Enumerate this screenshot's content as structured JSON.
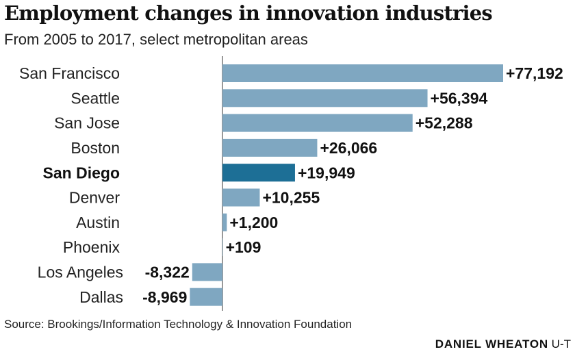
{
  "header": {
    "title": "Employment changes in innovation industries",
    "subtitle": "From 2005 to 2017, select metropolitan areas"
  },
  "chart_data": {
    "type": "bar",
    "orientation": "horizontal",
    "categories": [
      "San Francisco",
      "Seattle",
      "San Jose",
      "Boston",
      "San Diego",
      "Denver",
      "Austin",
      "Phoenix",
      "Los Angeles",
      "Dallas"
    ],
    "values": [
      77192,
      56394,
      52288,
      26066,
      19949,
      10255,
      1200,
      109,
      -8322,
      -8969
    ],
    "value_labels": [
      "+77,192",
      "+56,394",
      "+52,288",
      "+26,066",
      "+19,949",
      "+10,255",
      "+1,200",
      "+109",
      "-8,322",
      "-8,969"
    ],
    "highlight": "San Diego",
    "grid": false,
    "legend": "none"
  },
  "colors": {
    "bar": "#7fa7c1",
    "highlight_bar": "#1d6f96",
    "axis": "#555555"
  },
  "footer": {
    "source": "Source: Brookings/Information Technology & Innovation Foundation",
    "credit_name": "DANIEL WHEATON",
    "credit_org": "U-T"
  }
}
